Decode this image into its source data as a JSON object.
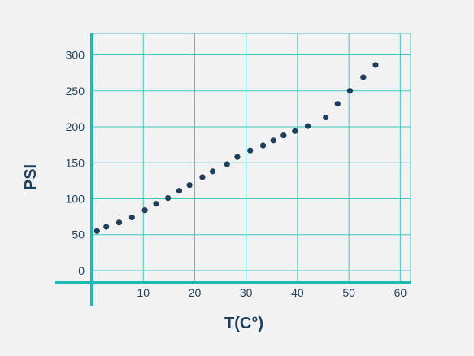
{
  "colors": {
    "background": "#f2f2f2",
    "grid": "#3ec7c1",
    "axis": "#1dbab4",
    "point": "#1e3e5c",
    "text": "#1e3e5c"
  },
  "chart_data": {
    "type": "scatter",
    "title": "",
    "xlabel": "T(C°)",
    "ylabel": "PSI",
    "xlim": [
      0,
      62
    ],
    "ylim": [
      -17,
      330
    ],
    "grid": true,
    "xticks": [
      10,
      20,
      30,
      40,
      50,
      60
    ],
    "yticks": [
      0,
      50,
      100,
      150,
      200,
      250,
      300
    ],
    "xtick_labels": [
      "10",
      "20",
      "30",
      "40",
      "50",
      "60"
    ],
    "ytick_labels": [
      "0",
      "50",
      "100",
      "150",
      "200",
      "250",
      "300"
    ],
    "series": [
      {
        "points": [
          [
            1,
            55
          ],
          [
            2.8,
            61
          ],
          [
            5.3,
            67
          ],
          [
            7.8,
            74
          ],
          [
            10.3,
            84
          ],
          [
            12.5,
            93
          ],
          [
            14.8,
            101
          ],
          [
            17,
            111
          ],
          [
            19,
            119
          ],
          [
            21.5,
            130
          ],
          [
            23.5,
            138
          ],
          [
            26.3,
            148
          ],
          [
            28.3,
            158
          ],
          [
            30.8,
            167
          ],
          [
            33.3,
            174
          ],
          [
            35.3,
            181
          ],
          [
            37.3,
            188
          ],
          [
            39.5,
            194
          ],
          [
            42,
            201
          ],
          [
            45.5,
            213
          ],
          [
            47.8,
            232
          ],
          [
            50.2,
            250
          ],
          [
            52.8,
            269
          ],
          [
            55.2,
            286
          ]
        ]
      }
    ]
  }
}
